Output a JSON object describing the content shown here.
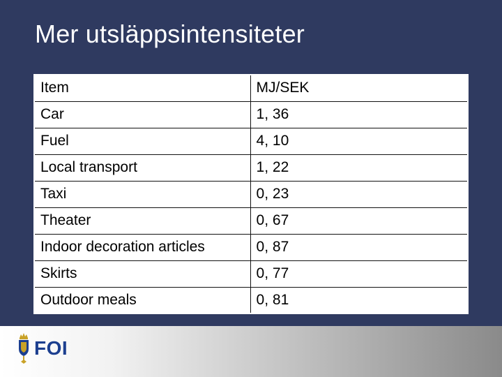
{
  "slide": {
    "title": "Mer utsläppsintensiteter"
  },
  "table": {
    "header": {
      "item": "Item",
      "value": "MJ/SEK"
    },
    "rows": [
      {
        "item": "Car",
        "value": "1, 36"
      },
      {
        "item": "Fuel",
        "value": "4, 10"
      },
      {
        "item": "Local transport",
        "value": "1, 22"
      },
      {
        "item": "Taxi",
        "value": "0, 23"
      },
      {
        "item": "Theater",
        "value": "0, 67"
      },
      {
        "item": "Indoor decoration articles",
        "value": "0, 87"
      },
      {
        "item": "Skirts",
        "value": "0, 77"
      },
      {
        "item": "Outdoor meals",
        "value": "0, 81"
      }
    ]
  },
  "footer": {
    "logo_text": "FOI",
    "logo_icon": "foi-emblem-icon"
  },
  "colors": {
    "background": "#2f3a60",
    "title": "#ffffff",
    "logo": "#1c3f8f",
    "emblem_gold": "#c9a227"
  }
}
